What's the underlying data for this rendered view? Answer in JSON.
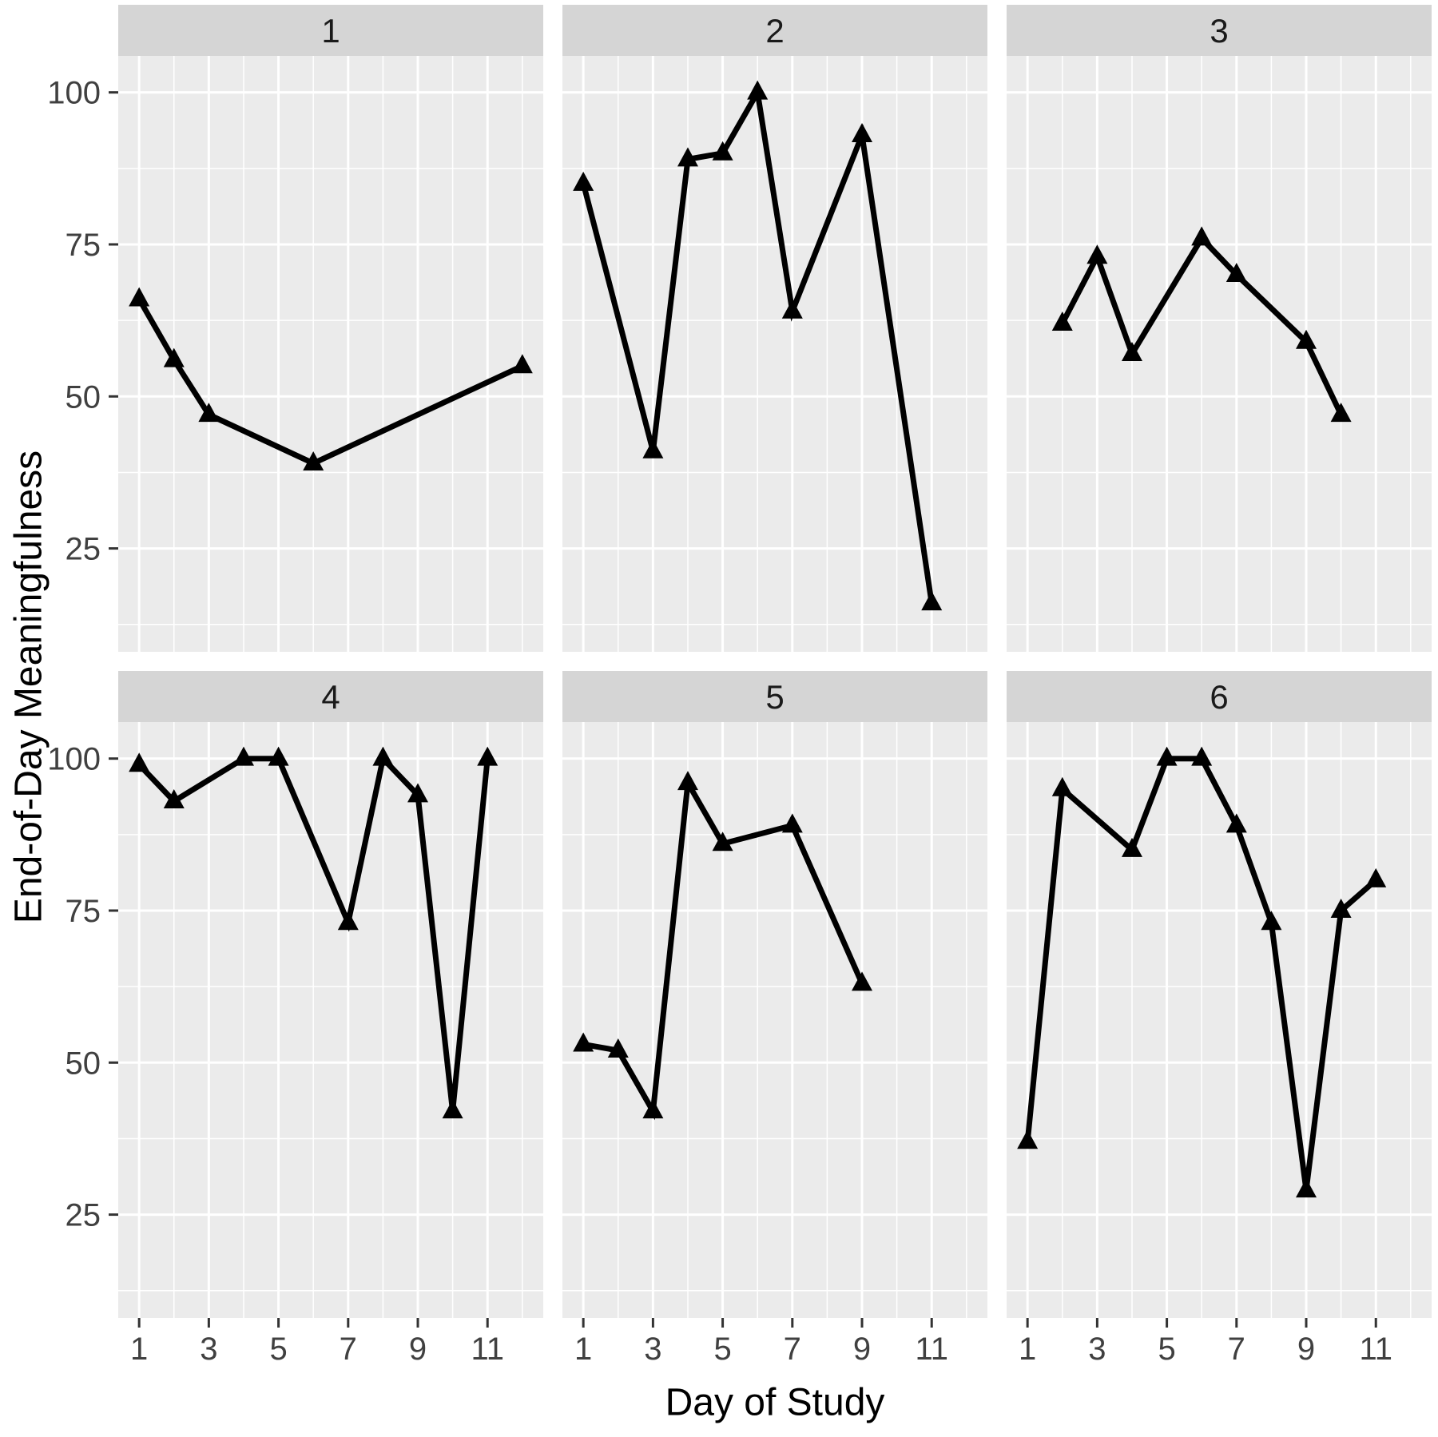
{
  "figure": {
    "y_axis_title": "End-of-Day Meaningfulness",
    "x_axis_title": "Day of Study",
    "colors": {
      "background": "#FFFFFF",
      "panel_background": "#EBEBEB",
      "strip_background": "#D5D5D5",
      "gridline": "#FFFFFF",
      "line": "#000000",
      "marker": "#000000",
      "strip_text": "#1A1A1A",
      "tick_text": "#404040",
      "tick_mark": "#333333",
      "axis_title_text": "#000000"
    }
  },
  "chart_data": {
    "type": "line",
    "title": "",
    "xlabel": "Day of Study",
    "ylabel": "End-of-Day Meaningfulness",
    "facet_layout": "2 rows x 3 cols, facet labels in grey strips",
    "legend": "none",
    "grid": "white major and minor gridlines on grey panels",
    "marker_shape": "filled triangle",
    "x_ticks": [
      1,
      3,
      5,
      7,
      9,
      11
    ],
    "x_minor_ticks": [
      2,
      4,
      6,
      8,
      10,
      12
    ],
    "y_ticks": [
      25,
      50,
      75,
      100
    ],
    "y_minor_ticks": [
      12.5,
      37.5,
      62.5,
      87.5
    ],
    "x_domain": [
      0.4,
      12.6
    ],
    "y_domain": [
      8,
      106
    ],
    "series": [
      {
        "facet": "1",
        "points": [
          [
            1,
            66
          ],
          [
            2,
            56
          ],
          [
            3,
            47
          ],
          [
            6,
            39
          ],
          [
            12,
            55
          ]
        ]
      },
      {
        "facet": "2",
        "points": [
          [
            1,
            85
          ],
          [
            3,
            41
          ],
          [
            4,
            89
          ],
          [
            5,
            90
          ],
          [
            6,
            100
          ],
          [
            7,
            64
          ],
          [
            9,
            93
          ],
          [
            11,
            16
          ]
        ]
      },
      {
        "facet": "3",
        "points": [
          [
            2,
            62
          ],
          [
            3,
            73
          ],
          [
            4,
            57
          ],
          [
            6,
            76
          ],
          [
            7,
            70
          ],
          [
            9,
            59
          ],
          [
            10,
            47
          ]
        ]
      },
      {
        "facet": "4",
        "points": [
          [
            1,
            99
          ],
          [
            2,
            93
          ],
          [
            4,
            100
          ],
          [
            5,
            100
          ],
          [
            7,
            73
          ],
          [
            8,
            100
          ],
          [
            9,
            94
          ],
          [
            10,
            42
          ],
          [
            11,
            100
          ]
        ]
      },
      {
        "facet": "5",
        "points": [
          [
            1,
            53
          ],
          [
            2,
            52
          ],
          [
            3,
            42
          ],
          [
            4,
            96
          ],
          [
            5,
            86
          ],
          [
            7,
            89
          ],
          [
            9,
            63
          ]
        ]
      },
      {
        "facet": "6",
        "points": [
          [
            1,
            37
          ],
          [
            2,
            95
          ],
          [
            4,
            85
          ],
          [
            5,
            100
          ],
          [
            6,
            100
          ],
          [
            7,
            89
          ],
          [
            8,
            73
          ],
          [
            9,
            29
          ],
          [
            10,
            75
          ],
          [
            11,
            80
          ]
        ]
      }
    ]
  }
}
